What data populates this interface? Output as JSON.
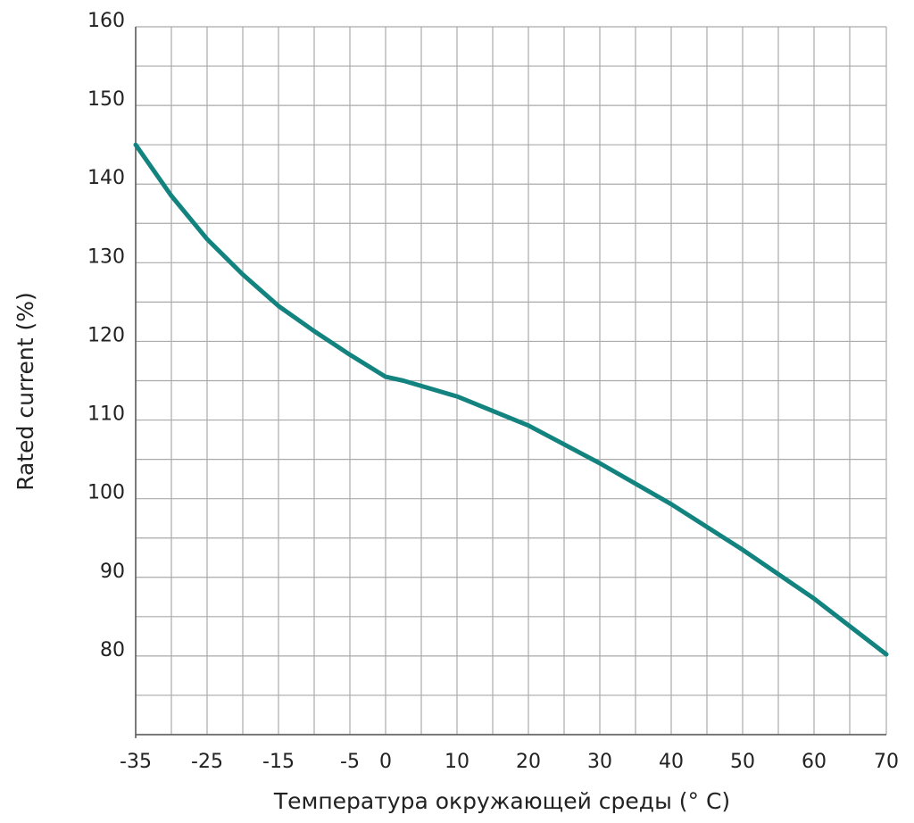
{
  "chart_data": {
    "type": "line",
    "xlabel": "Температура окружающей среды (° C)",
    "ylabel": "Rated current (%)",
    "x_tick_labels": [
      "-35",
      "-25",
      "-15",
      "-5",
      "0",
      "10",
      "20",
      "30",
      "40",
      "50",
      "60",
      "70"
    ],
    "y_tick_labels": [
      "80",
      "90",
      "100",
      "110",
      "120",
      "130",
      "140",
      "150",
      "160"
    ],
    "ylim": [
      70,
      160
    ],
    "grid": true,
    "series": [
      {
        "x": [
          -35,
          -30,
          -25,
          -20,
          -15,
          -10,
          -5,
          0,
          2.5,
          10,
          20,
          30,
          40,
          50,
          60,
          70
        ],
        "values": [
          145,
          138.5,
          133,
          128.5,
          124.5,
          121.3,
          118.3,
          115.5,
          115,
          113,
          109.3,
          104.5,
          99.3,
          93.5,
          87.3,
          80.2
        ]
      }
    ]
  },
  "colors": {
    "line": "#12837f",
    "grid": "#aaaaaa"
  }
}
